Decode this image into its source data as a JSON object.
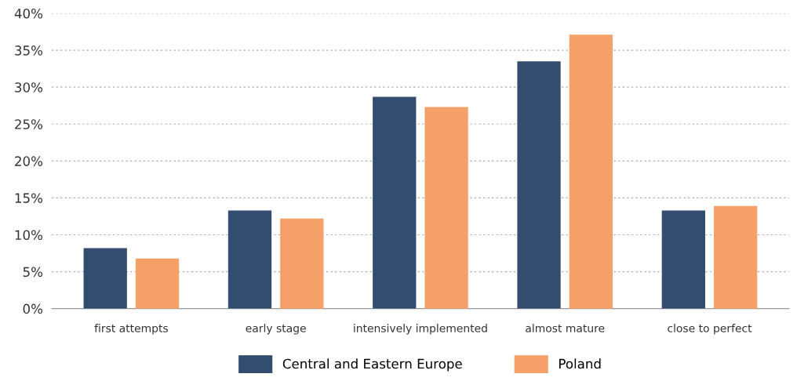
{
  "chart_data": {
    "type": "bar",
    "categories": [
      "first attempts",
      "early stage",
      "intensively implemented",
      "almost mature",
      "close to perfect"
    ],
    "series": [
      {
        "name": "Central and Eastern Europe",
        "color": "#324d6e",
        "values": [
          8.2,
          13.3,
          28.7,
          33.5,
          13.3
        ]
      },
      {
        "name": "Poland",
        "color": "#f4a068",
        "values": [
          6.8,
          12.2,
          27.3,
          37.1,
          13.9
        ]
      }
    ],
    "ylim": [
      0,
      40
    ],
    "yticks": [
      {
        "value": 0,
        "label": "0%"
      },
      {
        "value": 5,
        "label": "5%"
      },
      {
        "value": 10,
        "label": "10%"
      },
      {
        "value": 15,
        "label": "15%"
      },
      {
        "value": 20,
        "label": "20%"
      },
      {
        "value": 25,
        "label": "25%"
      },
      {
        "value": 30,
        "label": "30%"
      },
      {
        "value": 35,
        "label": "35%"
      },
      {
        "value": 40,
        "label": "40%"
      }
    ],
    "grid": "y",
    "legend": "bottom"
  }
}
